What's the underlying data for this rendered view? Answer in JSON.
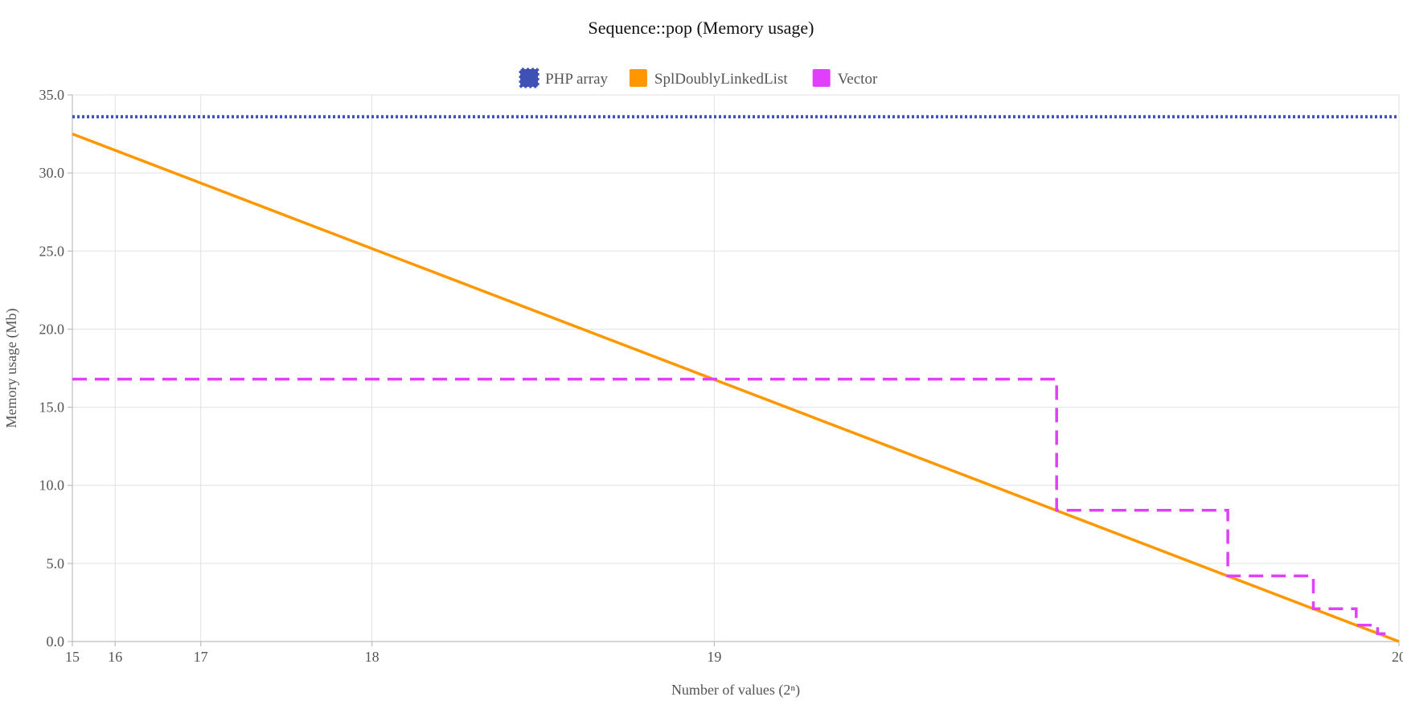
{
  "chart_data": {
    "type": "line",
    "title": "Sequence::pop (Memory usage)",
    "xlabel": "Number of values (2ⁿ)",
    "ylabel": "Memory usage (Mb)",
    "xlim": [
      32768,
      1048576
    ],
    "ylim": [
      0,
      35
    ],
    "x_ticks": [
      {
        "value": 32768,
        "label": "15"
      },
      {
        "value": 65536,
        "label": "16"
      },
      {
        "value": 131072,
        "label": "17"
      },
      {
        "value": 262144,
        "label": "18"
      },
      {
        "value": 524288,
        "label": "19"
      },
      {
        "value": 1048576,
        "label": "20"
      }
    ],
    "y_ticks": [
      0,
      5,
      10,
      15,
      20,
      25,
      30,
      35
    ],
    "y_tick_labels": [
      "0.0",
      "5.0",
      "10.0",
      "15.0",
      "20.0",
      "25.0",
      "30.0",
      "35.0"
    ],
    "legend_position": "top-center",
    "series": [
      {
        "name": "PHP array",
        "color": "#3f51b5",
        "style": "dotted",
        "points": [
          [
            32768,
            33.6
          ],
          [
            1048576,
            33.6
          ]
        ]
      },
      {
        "name": "SplDoublyLinkedList",
        "color": "#ff9800",
        "style": "solid",
        "points": [
          [
            32768,
            32.5
          ],
          [
            1048576,
            0
          ]
        ]
      },
      {
        "name": "Vector",
        "color": "#e040fb",
        "style": "dashed",
        "points": [
          [
            32768,
            16.8
          ],
          [
            786432,
            16.8
          ],
          [
            786432,
            8.4
          ],
          [
            917504,
            8.4
          ],
          [
            917504,
            4.2
          ],
          [
            983040,
            4.2
          ],
          [
            983040,
            2.1
          ],
          [
            1015808,
            2.1
          ],
          [
            1015808,
            1.05
          ],
          [
            1032192,
            1.05
          ],
          [
            1032192,
            0.5
          ],
          [
            1040000,
            0.5
          ]
        ]
      }
    ]
  }
}
